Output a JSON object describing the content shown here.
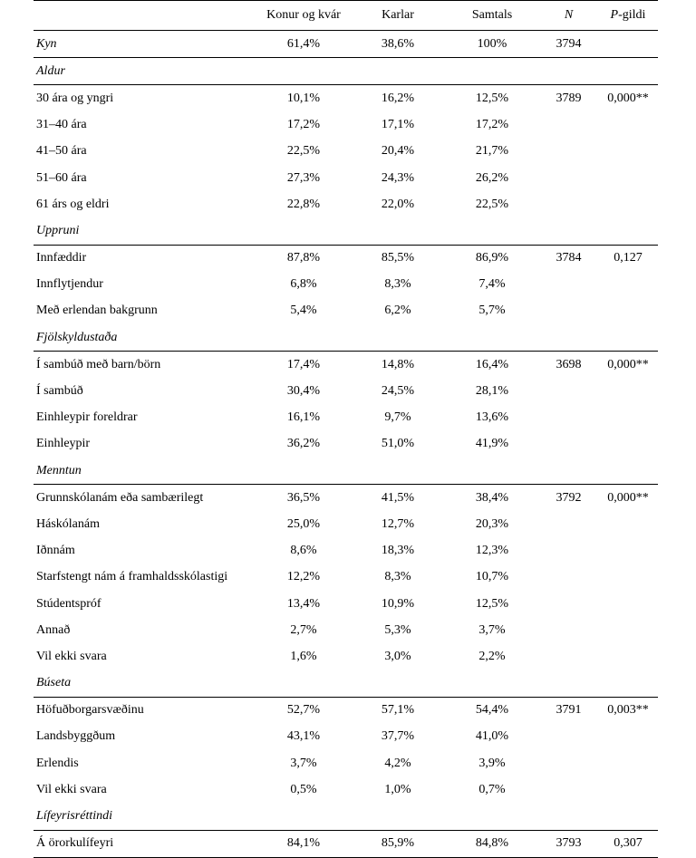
{
  "header": {
    "col1": "Konur og kvár",
    "col2": "Karlar",
    "col3": "Samtals",
    "col4": "N",
    "col5_prefix": "P",
    "col5_suffix": "-gildi"
  },
  "rows": [
    {
      "type": "section",
      "label": "Kyn",
      "c1": "61,4%",
      "c2": "38,6%",
      "c3": "100%",
      "c4": "3794",
      "c5": ""
    },
    {
      "type": "section",
      "label": "Aldur",
      "c1": "",
      "c2": "",
      "c3": "",
      "c4": "",
      "c5": ""
    },
    {
      "type": "item",
      "label": "30 ára og yngri",
      "c1": "10,1%",
      "c2": "16,2%",
      "c3": "12,5%",
      "c4": "3789",
      "c5": "0,000**"
    },
    {
      "type": "item",
      "label": "31–40 ára",
      "c1": "17,2%",
      "c2": "17,1%",
      "c3": "17,2%",
      "c4": "",
      "c5": ""
    },
    {
      "type": "item",
      "label": "41–50 ára",
      "c1": "22,5%",
      "c2": "20,4%",
      "c3": "21,7%",
      "c4": "",
      "c5": ""
    },
    {
      "type": "item",
      "label": "51–60 ára",
      "c1": "27,3%",
      "c2": "24,3%",
      "c3": "26,2%",
      "c4": "",
      "c5": ""
    },
    {
      "type": "item",
      "label": "61 árs og eldri",
      "c1": "22,8%",
      "c2": "22,0%",
      "c3": "22,5%",
      "c4": "",
      "c5": ""
    },
    {
      "type": "section",
      "label": "Uppruni",
      "c1": "",
      "c2": "",
      "c3": "",
      "c4": "",
      "c5": ""
    },
    {
      "type": "item",
      "label": "Innfæddir",
      "c1": "87,8%",
      "c2": "85,5%",
      "c3": "86,9%",
      "c4": "3784",
      "c5": "0,127"
    },
    {
      "type": "item",
      "label": "Innflytjendur",
      "c1": "6,8%",
      "c2": "8,3%",
      "c3": "7,4%",
      "c4": "",
      "c5": ""
    },
    {
      "type": "item",
      "label": "Með erlendan bakgrunn",
      "c1": "5,4%",
      "c2": "6,2%",
      "c3": "5,7%",
      "c4": "",
      "c5": ""
    },
    {
      "type": "section",
      "label": "Fjölskyldustaða",
      "c1": "",
      "c2": "",
      "c3": "",
      "c4": "",
      "c5": ""
    },
    {
      "type": "item",
      "label": "Í sambúð með barn/börn",
      "c1": "17,4%",
      "c2": "14,8%",
      "c3": "16,4%",
      "c4": "3698",
      "c5": "0,000**"
    },
    {
      "type": "item",
      "label": "Í sambúð",
      "c1": "30,4%",
      "c2": "24,5%",
      "c3": "28,1%",
      "c4": "",
      "c5": ""
    },
    {
      "type": "item",
      "label": "Einhleypir foreldrar",
      "c1": "16,1%",
      "c2": "9,7%",
      "c3": "13,6%",
      "c4": "",
      "c5": ""
    },
    {
      "type": "item",
      "label": "Einhleypir",
      "c1": "36,2%",
      "c2": "51,0%",
      "c3": "41,9%",
      "c4": "",
      "c5": ""
    },
    {
      "type": "section",
      "label": "Menntun",
      "c1": "",
      "c2": "",
      "c3": "",
      "c4": "",
      "c5": ""
    },
    {
      "type": "item",
      "label": "Grunnskólanám eða sambærilegt",
      "c1": "36,5%",
      "c2": "41,5%",
      "c3": "38,4%",
      "c4": "3792",
      "c5": "0,000**"
    },
    {
      "type": "item",
      "label": "Háskólanám",
      "c1": "25,0%",
      "c2": "12,7%",
      "c3": "20,3%",
      "c4": "",
      "c5": ""
    },
    {
      "type": "item",
      "label": "Iðnnám",
      "c1": "8,6%",
      "c2": "18,3%",
      "c3": "12,3%",
      "c4": "",
      "c5": ""
    },
    {
      "type": "item",
      "label": "Starfstengt nám á framhaldsskólastigi",
      "c1": "12,2%",
      "c2": "8,3%",
      "c3": "10,7%",
      "c4": "",
      "c5": ""
    },
    {
      "type": "item",
      "label": "Stúdentspróf",
      "c1": "13,4%",
      "c2": "10,9%",
      "c3": "12,5%",
      "c4": "",
      "c5": ""
    },
    {
      "type": "item",
      "label": "Annað",
      "c1": "2,7%",
      "c2": "5,3%",
      "c3": "3,7%",
      "c4": "",
      "c5": ""
    },
    {
      "type": "item",
      "label": "Vil ekki svara",
      "c1": "1,6%",
      "c2": "3,0%",
      "c3": "2,2%",
      "c4": "",
      "c5": ""
    },
    {
      "type": "section",
      "label": "Búseta",
      "c1": "",
      "c2": "",
      "c3": "",
      "c4": "",
      "c5": ""
    },
    {
      "type": "item",
      "label": "Höfuðborgarsvæðinu",
      "c1": "52,7%",
      "c2": "57,1%",
      "c3": "54,4%",
      "c4": "3791",
      "c5": "0,003**"
    },
    {
      "type": "item",
      "label": "Landsbyggðum",
      "c1": "43,1%",
      "c2": "37,7%",
      "c3": "41,0%",
      "c4": "",
      "c5": ""
    },
    {
      "type": "item",
      "label": "Erlendis",
      "c1": "3,7%",
      "c2": "4,2%",
      "c3": "3,9%",
      "c4": "",
      "c5": ""
    },
    {
      "type": "item",
      "label": "Vil ekki svara",
      "c1": "0,5%",
      "c2": "1,0%",
      "c3": "0,7%",
      "c4": "",
      "c5": ""
    },
    {
      "type": "section",
      "label": "Lífeyrisréttindi",
      "c1": "",
      "c2": "",
      "c3": "",
      "c4": "",
      "c5": ""
    },
    {
      "type": "item",
      "label": "Á örorkulífeyri",
      "c1": "84,1%",
      "c2": "85,9%",
      "c3": "84,8%",
      "c4": "3793",
      "c5": "0,307"
    }
  ]
}
